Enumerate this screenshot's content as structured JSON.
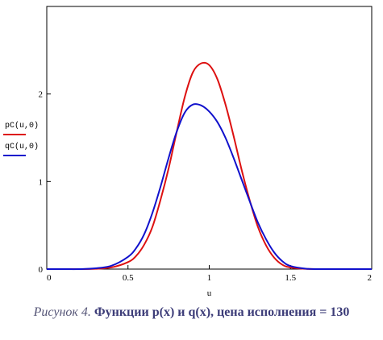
{
  "chart_data": {
    "type": "line",
    "xlabel": "u",
    "xlim": [
      0,
      2
    ],
    "ylim": [
      0,
      3
    ],
    "x_ticks": [
      {
        "value": 0,
        "label": "0"
      },
      {
        "value": 0.5,
        "label": "0.5"
      },
      {
        "value": 1,
        "label": "1"
      },
      {
        "value": 1.5,
        "label": "1.5"
      },
      {
        "value": 2,
        "label": "2"
      }
    ],
    "y_ticks": [
      {
        "value": 0,
        "label": "0"
      },
      {
        "value": 1,
        "label": "1"
      },
      {
        "value": 2,
        "label": "2"
      }
    ],
    "x": [
      0,
      0.1,
      0.2,
      0.3,
      0.4,
      0.5,
      0.55,
      0.6,
      0.65,
      0.7,
      0.75,
      0.8,
      0.85,
      0.9,
      0.95,
      1.0,
      1.05,
      1.1,
      1.15,
      1.2,
      1.25,
      1.3,
      1.35,
      1.4,
      1.45,
      1.5,
      1.6,
      1.7,
      1.8,
      2.0
    ],
    "series": [
      {
        "name": "pC(u,0)",
        "color": "#dd1111",
        "values": [
          0,
          0,
          0.0,
          0.003,
          0.02,
          0.08,
          0.15,
          0.28,
          0.48,
          0.79,
          1.15,
          1.57,
          1.97,
          2.25,
          2.35,
          2.33,
          2.17,
          1.88,
          1.52,
          1.13,
          0.78,
          0.48,
          0.27,
          0.13,
          0.05,
          0.018,
          0.002,
          0,
          0,
          0
        ]
      },
      {
        "name": "qC(u,0)",
        "color": "#1111cc",
        "values": [
          0,
          0,
          0.0,
          0.009,
          0.04,
          0.14,
          0.24,
          0.4,
          0.64,
          0.94,
          1.27,
          1.57,
          1.79,
          1.88,
          1.87,
          1.8,
          1.68,
          1.5,
          1.27,
          1.02,
          0.77,
          0.53,
          0.34,
          0.19,
          0.09,
          0.035,
          0.004,
          0,
          0,
          0
        ]
      }
    ]
  },
  "caption": {
    "figure_label": "Рисунок 4.",
    "title": "Функции p(x) и q(x), цена исполнения = 130"
  }
}
